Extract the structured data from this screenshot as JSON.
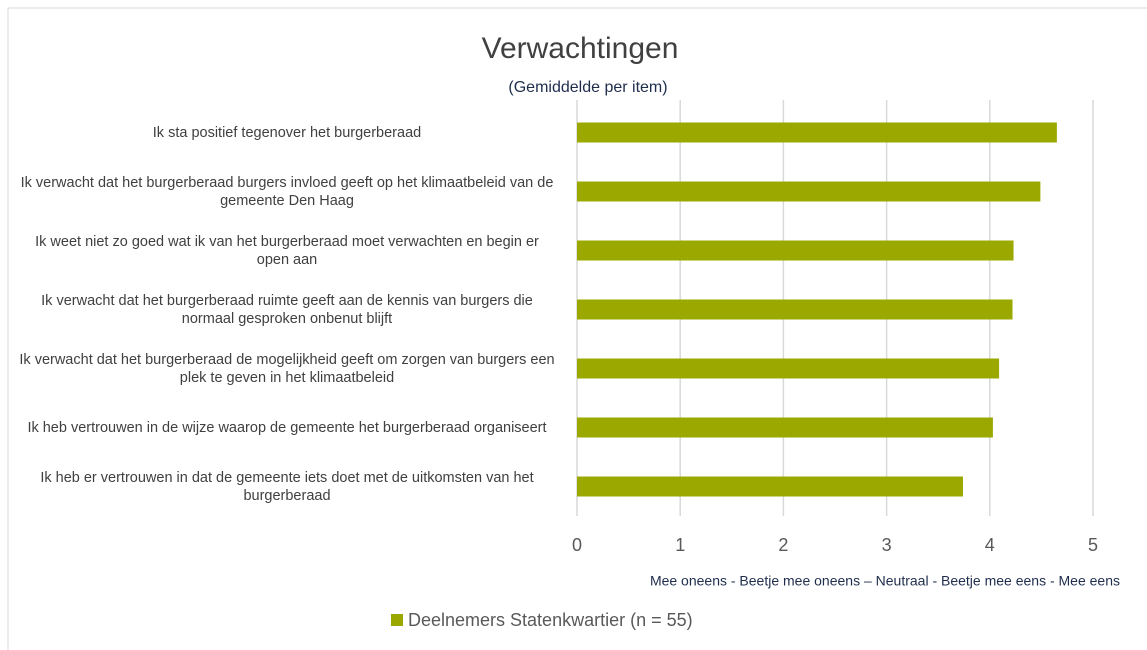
{
  "chart_data": {
    "type": "bar",
    "orientation": "horizontal",
    "title": "Verwachtingen",
    "subtitle": "(Gemiddelde per item)",
    "x_label": "Mee oneens - Beetje mee oneens – Neutraal - Beetje mee eens - Mee eens",
    "categories": [
      "Ik sta positief tegenover het burgerberaad",
      "Ik verwacht dat het burgerberaad burgers invloed geeft op het klimaatbeleid van de gemeente Den Haag",
      "Ik weet niet zo goed wat ik van het burgerberaad moet verwachten en begin er open aan",
      "Ik verwacht dat het burgerberaad ruimte geeft aan de kennis van burgers die normaal gesproken onbenut blijft",
      "Ik verwacht dat het burgerberaad de mogelijkheid geeft om zorgen van burgers een plek te geven in het klimaatbeleid",
      "Ik heb vertrouwen in de wijze waarop de gemeente het burgerberaad organiseert",
      "Ik heb er vertrouwen in dat de gemeente iets doet met de uitkomsten van het burgerberaad"
    ],
    "series": [
      {
        "name": "Deelnemers Statenkwartier (n = 55)",
        "color": "#9aa800",
        "values": [
          4.65,
          4.49,
          4.23,
          4.22,
          4.09,
          4.03,
          3.74
        ]
      }
    ],
    "xlim": [
      0,
      5
    ],
    "xticks": [
      0,
      1,
      2,
      3,
      4,
      5
    ],
    "grid": true,
    "legend": "bottom"
  }
}
